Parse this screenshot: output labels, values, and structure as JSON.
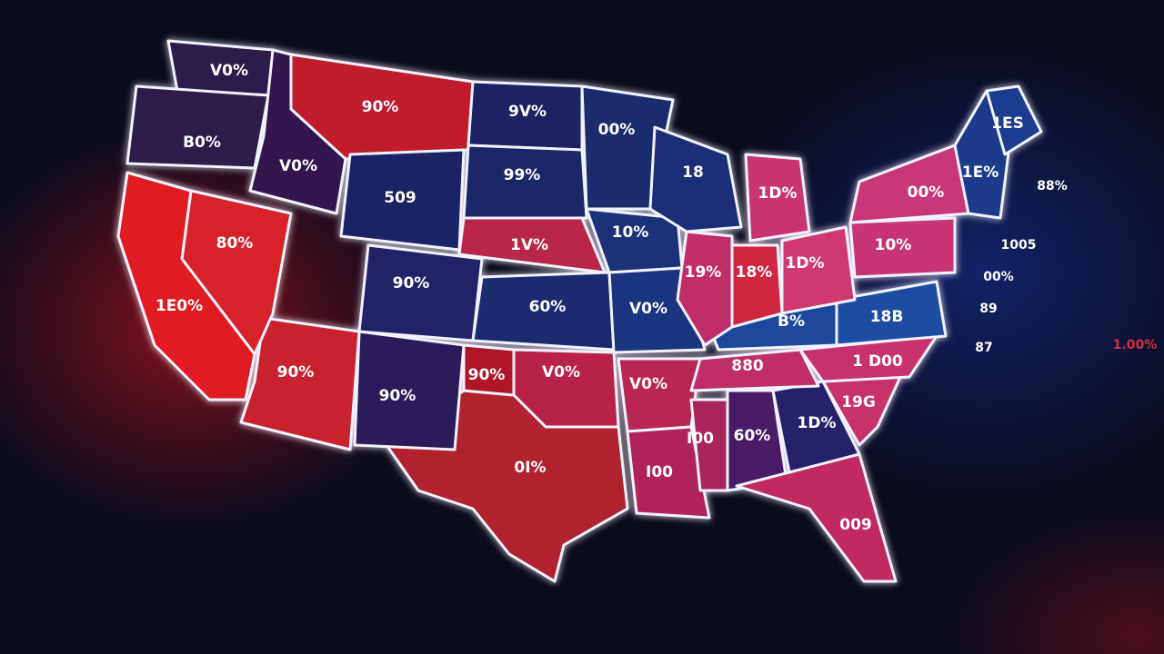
{
  "map": {
    "regions": [
      {
        "label": "V0%",
        "color": "#2b1a4c"
      },
      {
        "label": "B0%",
        "color": "#2d1a4a"
      },
      {
        "label": "V0%",
        "color": "#33194e"
      },
      {
        "label": "90%",
        "color": "#c01e2e"
      },
      {
        "label": "509",
        "color": "#1c2466"
      },
      {
        "label": "9V%",
        "color": "#1a2462"
      },
      {
        "label": "99%",
        "color": "#1c2668"
      },
      {
        "label": "1V%",
        "color": "#b8254a"
      },
      {
        "label": "90%",
        "color": "#242068"
      },
      {
        "label": "60%",
        "color": "#1c2a70"
      },
      {
        "label": "V0%",
        "color": "#b82448"
      },
      {
        "label": "0I%",
        "color": "#b0202e"
      },
      {
        "label": "90%",
        "color": "#2a1c5a"
      },
      {
        "label": "90%",
        "color": "#b0182a"
      },
      {
        "label": "90%",
        "color": "#c8202e"
      },
      {
        "label": "80%",
        "color": "#d8202a"
      },
      {
        "label": "1E0%",
        "color": "#e01c24"
      },
      {
        "label": "00%",
        "color": "#1a2a6e"
      },
      {
        "label": "10%",
        "color": "#1c3078"
      },
      {
        "label": "V0%",
        "color": "#1e3480"
      },
      {
        "label": "V0%",
        "color": "#b82652"
      },
      {
        "label": "I00",
        "color": "#b0245a"
      },
      {
        "label": "I00",
        "color": "#a8285c"
      },
      {
        "label": "60%",
        "color": "#4a1e68"
      },
      {
        "label": "1D%",
        "color": "#26246a"
      },
      {
        "label": "009",
        "color": "#c02a60"
      },
      {
        "label": "19G",
        "color": "#c8306a"
      },
      {
        "label": "1 D00",
        "color": "#c8306c"
      },
      {
        "label": "880",
        "color": "#c02e68"
      },
      {
        "label": "B%",
        "color": "#1e4a9a"
      },
      {
        "label": "18B",
        "color": "#1e4ea0"
      },
      {
        "label": "1D%",
        "color": "#d03870"
      },
      {
        "label": "18%",
        "color": "#d02840"
      },
      {
        "label": "19%",
        "color": "#c02e6a"
      },
      {
        "label": "18",
        "color": "#1a2e78"
      },
      {
        "label": "1D%",
        "color": "#c83470"
      },
      {
        "label": "10%",
        "color": "#c83474"
      },
      {
        "label": "00%",
        "color": "#c83878"
      },
      {
        "label": "1E%",
        "color": "#1e3a8a"
      },
      {
        "label": "1ES",
        "color": "#1c3c90"
      }
    ],
    "side_labels": [
      "88%",
      "1005",
      "00%",
      "89",
      "87",
      "1.00%"
    ]
  }
}
